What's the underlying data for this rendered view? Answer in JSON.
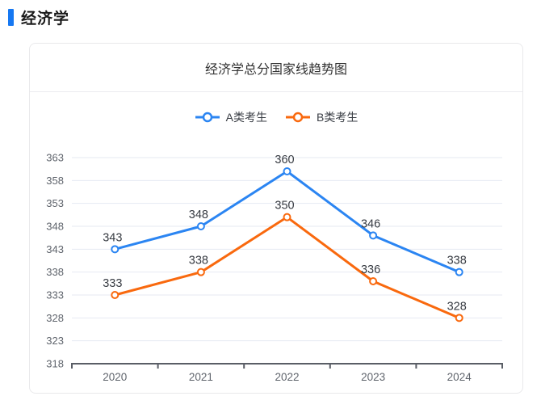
{
  "page": {
    "section_title": "经济学"
  },
  "card": {
    "title": "经济学总分国家线趋势图"
  },
  "chart_data": {
    "type": "line",
    "title": "经济学总分国家线趋势图",
    "categories": [
      "2020",
      "2021",
      "2022",
      "2023",
      "2024"
    ],
    "series": [
      {
        "name": "A类考生",
        "color": "#2b85f2",
        "values": [
          343,
          348,
          360,
          346,
          338
        ]
      },
      {
        "name": "B类考生",
        "color": "#f9690e",
        "values": [
          333,
          338,
          350,
          336,
          328
        ]
      }
    ],
    "ylim": [
      318,
      363
    ],
    "yticks": [
      318,
      323,
      328,
      333,
      338,
      343,
      348,
      353,
      358,
      363
    ],
    "grid": true,
    "legend_position": "top",
    "point_labels": true,
    "xlabel": "",
    "ylabel": ""
  },
  "colors": {
    "accent": "#1678f2",
    "series_a": "#2b85f2",
    "series_b": "#f9690e",
    "gridline": "#e6eaf2",
    "axis_line": "#5a5e66",
    "axis_text": "#5f646c",
    "data_label": "#373b42"
  }
}
